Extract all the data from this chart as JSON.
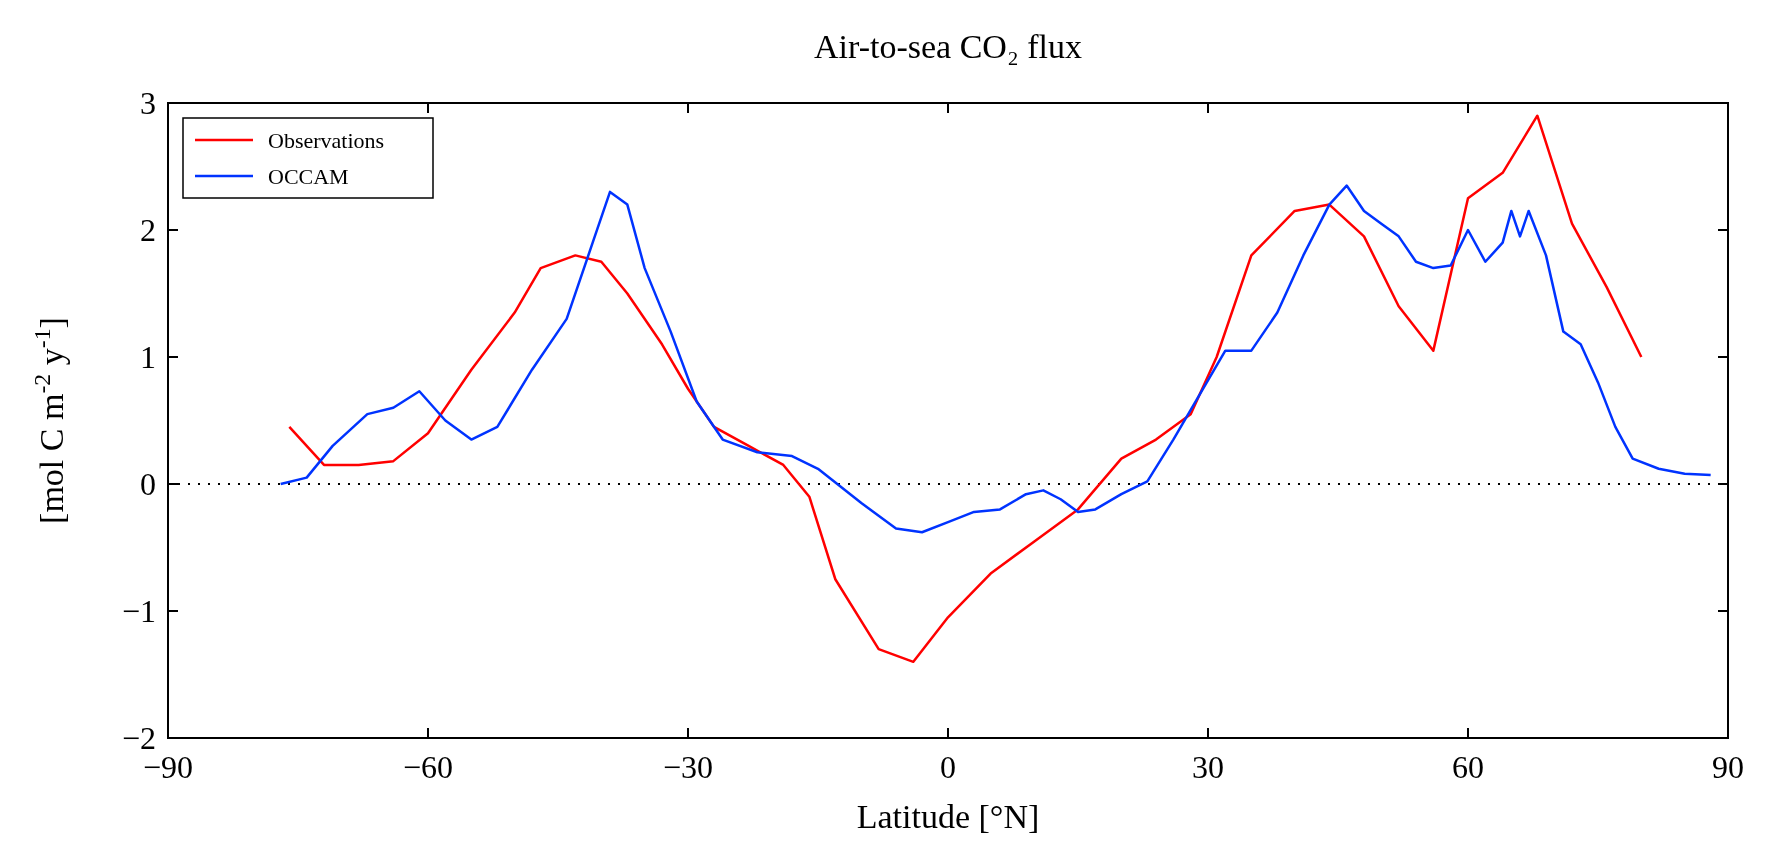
{
  "chart_data": {
    "type": "line",
    "title": "Air-to-sea CO₂ flux",
    "xlabel": "Latitude [°N]",
    "ylabel": "[mol C m$^{-2}$ y$^{-1}$]",
    "xlim": [
      -90,
      90
    ],
    "xticks": [
      -90,
      -60,
      -30,
      0,
      30,
      60,
      90
    ],
    "ylim": [
      -2,
      3
    ],
    "yticks": [
      -2,
      -1,
      0,
      1,
      2,
      3
    ],
    "grid": false,
    "legend": "top left",
    "line_style": "solid",
    "marker": "none",
    "ref_lines": [
      {
        "axis": "y",
        "value": 0,
        "color": "#000000",
        "line_style": "dotted"
      }
    ],
    "series": [
      {
        "name": "Observations",
        "color": "#ff0000",
        "x": [
          -76,
          -72,
          -68,
          -64,
          -60,
          -55,
          -50,
          -47,
          -43,
          -40,
          -37,
          -33,
          -30,
          -27,
          -23,
          -19,
          -16,
          -13,
          -8,
          -4,
          0,
          5,
          10,
          15,
          20,
          24,
          28,
          31,
          35,
          40,
          44,
          48,
          52,
          56,
          60,
          64,
          68,
          72,
          76,
          80
        ],
        "values": [
          0.45,
          0.15,
          0.15,
          0.18,
          0.4,
          0.9,
          1.35,
          1.7,
          1.8,
          1.75,
          1.5,
          1.1,
          0.75,
          0.45,
          0.3,
          0.15,
          -0.1,
          -0.75,
          -1.3,
          -1.4,
          -1.05,
          -0.7,
          -0.45,
          -0.2,
          0.2,
          0.35,
          0.55,
          1.0,
          1.8,
          2.15,
          2.2,
          1.95,
          1.4,
          1.05,
          2.25,
          2.45,
          2.9,
          2.05,
          1.55,
          1.0
        ]
      },
      {
        "name": "OCCAM",
        "color": "#0033ff",
        "x": [
          -77,
          -74,
          -71,
          -67,
          -64,
          -61,
          -58,
          -55,
          -52,
          -48,
          -44,
          -41,
          -39,
          -37,
          -35,
          -32,
          -29,
          -26,
          -22,
          -18,
          -15,
          -10,
          -6,
          -3,
          0,
          3,
          6,
          9,
          11,
          13,
          15,
          17,
          20,
          23,
          26,
          29,
          32,
          35,
          38,
          41,
          44,
          46,
          48,
          50,
          52,
          54,
          56,
          58,
          60,
          62,
          64,
          65,
          66,
          67,
          69,
          71,
          73,
          75,
          77,
          79,
          82,
          85,
          88
        ],
        "values": [
          0,
          0.05,
          0.3,
          0.55,
          0.6,
          0.73,
          0.5,
          0.35,
          0.45,
          0.9,
          1.3,
          1.9,
          2.3,
          2.2,
          1.7,
          1.2,
          0.65,
          0.35,
          0.25,
          0.22,
          0.12,
          -0.15,
          -0.35,
          -0.38,
          -0.3,
          -0.22,
          -0.2,
          -0.08,
          -0.05,
          -0.12,
          -0.22,
          -0.2,
          -0.08,
          0.02,
          0.35,
          0.7,
          1.05,
          1.05,
          1.35,
          1.8,
          2.2,
          2.35,
          2.15,
          2.05,
          1.95,
          1.75,
          1.7,
          1.72,
          2.0,
          1.75,
          1.9,
          2.15,
          1.95,
          2.15,
          1.8,
          1.2,
          1.1,
          0.8,
          0.45,
          0.2,
          0.12,
          0.08,
          0.07
        ]
      }
    ]
  }
}
